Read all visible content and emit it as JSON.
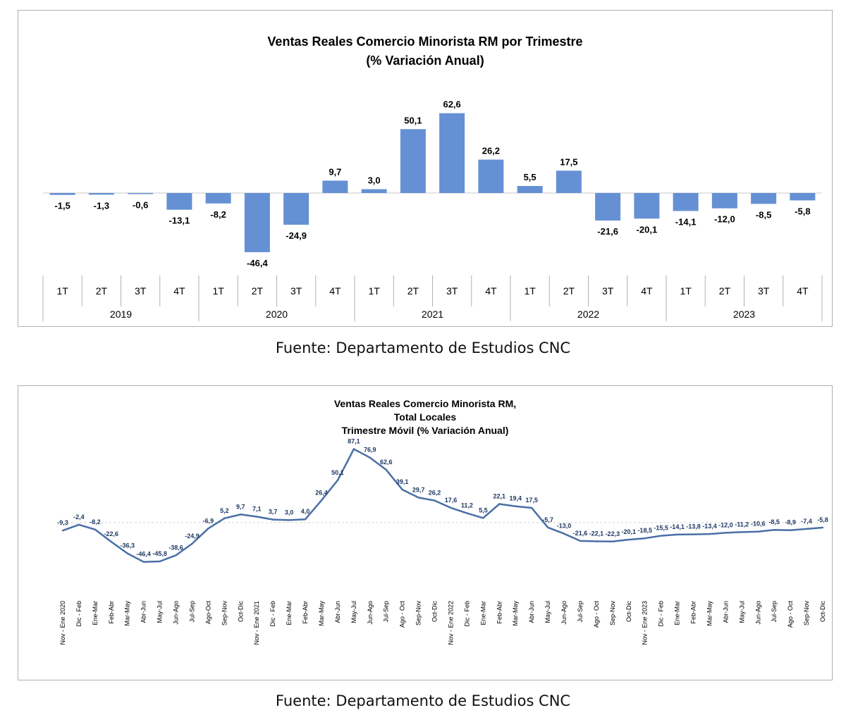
{
  "chart_data": [
    {
      "type": "bar",
      "title": "Ventas Reales Comercio Minorista RM por Trimestre",
      "subtitle": "(% Variación Anual)",
      "categories": [
        "1T",
        "2T",
        "3T",
        "4T",
        "1T",
        "2T",
        "3T",
        "4T",
        "1T",
        "2T",
        "3T",
        "4T",
        "1T",
        "2T",
        "3T",
        "4T",
        "1T",
        "2T",
        "3T",
        "4T"
      ],
      "groups": [
        {
          "label": "2019",
          "count": 4
        },
        {
          "label": "2020",
          "count": 4
        },
        {
          "label": "2021",
          "count": 4
        },
        {
          "label": "2022",
          "count": 4
        },
        {
          "label": "2023",
          "count": 4
        }
      ],
      "values": [
        -1.5,
        -1.3,
        -0.6,
        -13.1,
        -8.2,
        -46.4,
        -24.9,
        9.7,
        3.0,
        50.1,
        62.6,
        26.2,
        5.5,
        17.5,
        -21.6,
        -20.1,
        -14.1,
        -12.0,
        -8.5,
        -5.8
      ],
      "value_labels": [
        "-1,5",
        "-1,3",
        "-0,6",
        "-13,1",
        "-8,2",
        "-46,4",
        "-24,9",
        "9,7",
        "3,0",
        "50,1",
        "62,6",
        "26,2",
        "5,5",
        "17,5",
        "-21,6",
        "-20,1",
        "-14,1",
        "-12,0",
        "-8,5",
        "-5,8"
      ],
      "color": "#6590d4",
      "source": "Fuente: Departamento de Estudios CNC"
    },
    {
      "type": "line",
      "title_lines": [
        "Ventas Reales Comercio Minorista RM,",
        "Total Locales",
        "Trimestre Móvil (% Variación Anual)"
      ],
      "categories": [
        "Nov - Ene 2020",
        "Dic - Feb",
        "Ene-Mar",
        "Feb-Abr",
        "Mar-May",
        "Abr-Jun",
        "May-Jul",
        "Jun-Ago",
        "Jul-Sep",
        "Ago-Oct",
        "Sep-Nov",
        "Oct-Dic",
        "Nov - Ene 2021",
        "Dic - Feb",
        "Ene-Mar",
        "Feb-Abr",
        "Mar-May",
        "Abr-Jun",
        "May-Jul",
        "Jun-Ago",
        "Jul-Sep",
        "Ago - Oct",
        "Sep-Nov",
        "Oct-Dic",
        "Nov - Ene 2022",
        "Dic - Feb",
        "Ene-Mar",
        "Feb-Abr",
        "Mar-May",
        "Abr-Jun",
        "May-Jul",
        "Jun-Ago",
        "Jul-Sep",
        "Ago - Oct",
        "Sep-Nov",
        "Oct-Dic",
        "Nov - Ene 2023",
        "Dic - Feb",
        "Ene-Mar",
        "Feb-Abr",
        "Mar-May",
        "Abr-Jun",
        "May-Jul",
        "Jun-Ago",
        "Jul-Sep",
        "Ago - Oct",
        "Sep-Nov",
        "Oct-Dic"
      ],
      "values": [
        -9.3,
        -2.4,
        -8.2,
        -22.6,
        -36.3,
        -46.4,
        -45.8,
        -38.6,
        -24.9,
        -6.9,
        5.2,
        9.7,
        7.1,
        3.7,
        3.0,
        4.0,
        26.4,
        50.1,
        87.1,
        76.9,
        62.6,
        39.1,
        29.7,
        26.2,
        17.6,
        11.2,
        5.5,
        22.1,
        19.4,
        17.5,
        -5.7,
        -13.0,
        -21.6,
        -22.1,
        -22.3,
        -20.1,
        -18.5,
        -15.5,
        -14.1,
        -13.8,
        -13.4,
        -12.0,
        -11.2,
        -10.6,
        -8.5,
        -8.9,
        -7.4,
        -5.8
      ],
      "value_labels": [
        "-9,3",
        "-2,4",
        "-8,2",
        "-22,6",
        "-36,3",
        "-46,4",
        "-45,8",
        "-38,6",
        "-24,9",
        "-6,9",
        "5,2",
        "9,7",
        "7,1",
        "3,7",
        "3,0",
        "4,0",
        "26,4",
        "50,1",
        "87,1",
        "76,9",
        "62,6",
        "39,1",
        "29,7",
        "26,2",
        "17,6",
        "11,2",
        "5,5",
        "22,1",
        "19,4",
        "17,5",
        "-5,7",
        "-13,0",
        "-21,6",
        "-22,1",
        "-22,3",
        "-20,1",
        "-18,5",
        "-15,5",
        "-14,1",
        "-13,8",
        "-13,4",
        "-12,0",
        "-11,2",
        "-10,6",
        "-8,5",
        "-8,9",
        "-7,4",
        "-5,8"
      ],
      "color": "#4a6fa5",
      "label_color": "#1f3864",
      "source": "Fuente: Departamento de Estudios CNC"
    }
  ]
}
